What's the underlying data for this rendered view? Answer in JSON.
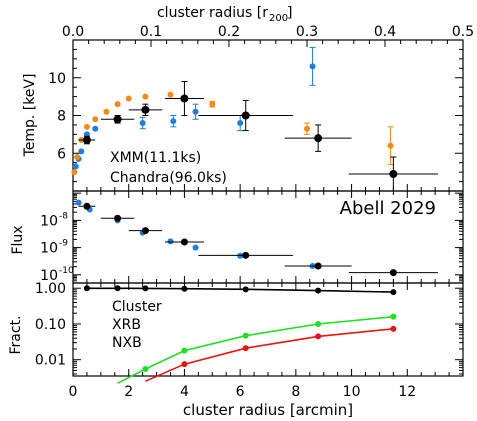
{
  "figure": {
    "top_axis_label": "cluster radius [r",
    "top_axis_label_sub": "200",
    "top_axis_label_end": "]",
    "bottom_axis_label": "cluster radius [arcmin]",
    "annotation": "Abell 2029"
  },
  "colors": {
    "xmm": "#1a7fe6",
    "chandra": "#f08c10",
    "combined": "#000000",
    "cluster_fraction": "#000000",
    "xrb": "#1ee01e",
    "nxb": "#ee1111"
  },
  "chart_data": [
    {
      "type": "scatter",
      "panel": "temperature",
      "ylabel": "Temp. [keV]",
      "xlim": [
        0,
        14
      ],
      "ylim": [
        4,
        12
      ],
      "yticks": [
        6,
        8,
        10
      ],
      "top_xlim": [
        0,
        0.5
      ],
      "top_xticks": [
        "0.0",
        "0.1",
        "0.2",
        "0.3",
        "0.4",
        "0.5"
      ],
      "xticks_bottom": [
        "0",
        "2",
        "4",
        "6",
        "8",
        "10",
        "12"
      ],
      "legend": [
        {
          "text": "XMM(11.1ks)",
          "series": "xmm"
        },
        {
          "text": "Chandra(96.0ks)",
          "series": "chandra"
        }
      ],
      "series": [
        {
          "name": "XMM(11.1ks)",
          "key": "xmm",
          "points": [
            {
              "x": 0.1,
              "y": 5.3
            },
            {
              "x": 0.2,
              "y": 5.7
            },
            {
              "x": 0.3,
              "y": 6.1
            },
            {
              "x": 0.5,
              "y": 7.0
            },
            {
              "x": 0.8,
              "y": 7.3
            },
            {
              "x": 1.6,
              "y": 7.8,
              "yerr": 0.2
            },
            {
              "x": 2.5,
              "y": 7.6,
              "yerr": 0.3
            },
            {
              "x": 3.6,
              "y": 7.7,
              "yerr": 0.3
            },
            {
              "x": 4.4,
              "y": 8.2,
              "yerr": 0.4
            },
            {
              "x": 6.0,
              "y": 7.6,
              "yerr": 0.4
            },
            {
              "x": 8.6,
              "y": 10.6,
              "yerr": 1.0
            }
          ]
        },
        {
          "name": "Chandra(96.0ks)",
          "key": "chandra",
          "points": [
            {
              "x": 0.05,
              "y": 5.0
            },
            {
              "x": 0.15,
              "y": 5.8
            },
            {
              "x": 0.3,
              "y": 6.7
            },
            {
              "x": 0.5,
              "y": 7.4
            },
            {
              "x": 0.8,
              "y": 7.8
            },
            {
              "x": 1.2,
              "y": 8.2
            },
            {
              "x": 1.6,
              "y": 8.6
            },
            {
              "x": 2.0,
              "y": 8.9
            },
            {
              "x": 2.6,
              "y": 9.0
            },
            {
              "x": 3.5,
              "y": 9.1
            },
            {
              "x": 5.0,
              "y": 8.6,
              "yerr": 0.15
            },
            {
              "x": 8.4,
              "y": 7.3,
              "yerr": 0.3
            },
            {
              "x": 11.4,
              "y": 6.4,
              "yerr": 1.0
            }
          ]
        },
        {
          "name": "",
          "key": "combined",
          "points": [
            {
              "x": 0.5,
              "y": 6.7,
              "xerr": 0.3,
              "yerr": 0.2
            },
            {
              "x": 1.6,
              "y": 7.8,
              "xerr": 0.6,
              "yerr": 0.2
            },
            {
              "x": 2.6,
              "y": 8.3,
              "xerr": 0.6,
              "yerr": 0.3
            },
            {
              "x": 4.0,
              "y": 8.9,
              "xerr": 0.7,
              "yerr": 0.9
            },
            {
              "x": 6.2,
              "y": 8.0,
              "xerr": 1.7,
              "yerr": 0.8
            },
            {
              "x": 8.8,
              "y": 6.8,
              "xerr": 1.2,
              "yerr": 0.7
            },
            {
              "x": 11.5,
              "y": 4.9,
              "xerr": 1.6,
              "yerr": 0.9
            }
          ]
        }
      ]
    },
    {
      "type": "scatter",
      "panel": "flux",
      "ylabel": "Flux",
      "yscale": "log",
      "xlim": [
        0,
        14
      ],
      "ylim": [
        5e-11,
        1.2e-07
      ],
      "ytick_labels": [
        "10",
        "10",
        "10"
      ],
      "ytick_exponents": [
        "-8",
        "-9",
        "-10"
      ],
      "ytick_values": [
        1e-08,
        1e-09,
        1e-10
      ],
      "series": [
        {
          "name": "",
          "key": "xmm",
          "points": [
            {
              "x": 0.2,
              "y": 4.5e-08
            },
            {
              "x": 0.6,
              "y": 2.5e-08
            },
            {
              "x": 1.6,
              "y": 1e-08
            },
            {
              "x": 2.5,
              "y": 3.5e-09
            },
            {
              "x": 3.5,
              "y": 1.7e-09
            },
            {
              "x": 4.4,
              "y": 1e-09
            },
            {
              "x": 6.0,
              "y": 5e-10
            },
            {
              "x": 8.6,
              "y": 2.1e-10
            }
          ]
        },
        {
          "name": "",
          "key": "combined",
          "points": [
            {
              "x": 0.5,
              "y": 3.3e-08,
              "xerr": 0.3
            },
            {
              "x": 1.6,
              "y": 1.2e-08,
              "xerr": 0.6
            },
            {
              "x": 2.6,
              "y": 4.2e-09,
              "xerr": 0.6
            },
            {
              "x": 4.0,
              "y": 1.6e-09,
              "xerr": 0.7
            },
            {
              "x": 6.2,
              "y": 5.2e-10,
              "xerr": 1.7
            },
            {
              "x": 8.8,
              "y": 2.1e-10,
              "xerr": 1.2
            },
            {
              "x": 11.5,
              "y": 1.2e-10,
              "xerr": 1.6
            }
          ]
        }
      ]
    },
    {
      "type": "line",
      "panel": "fraction",
      "ylabel": "Fract.",
      "yscale": "log",
      "xlim": [
        0,
        14
      ],
      "ylim": [
        0.0035,
        1.4
      ],
      "ytick_labels": [
        "1.00",
        "0.10",
        "0.01"
      ],
      "ytick_values": [
        1.0,
        0.1,
        0.01
      ],
      "legend": [
        {
          "text": "Cluster",
          "series": "cluster_fraction"
        },
        {
          "text": "XRB",
          "series": "xrb"
        },
        {
          "text": "NXB",
          "series": "nxb"
        }
      ],
      "series": [
        {
          "name": "Cluster",
          "key": "cluster_fraction",
          "x": [
            0.5,
            1.6,
            2.6,
            4.0,
            6.2,
            8.8,
            11.5
          ],
          "values": [
            0.998,
            0.995,
            0.99,
            0.97,
            0.93,
            0.86,
            0.78
          ]
        },
        {
          "name": "XRB",
          "key": "xrb",
          "x": [
            1.6,
            2.6,
            4.0,
            6.2,
            8.8,
            11.5
          ],
          "values": [
            0.0022,
            0.0055,
            0.018,
            0.047,
            0.1,
            0.16
          ]
        },
        {
          "name": "NXB",
          "key": "nxb",
          "x": [
            2.6,
            4.0,
            6.2,
            8.8,
            11.5
          ],
          "values": [
            0.0025,
            0.0075,
            0.021,
            0.045,
            0.073
          ]
        }
      ]
    }
  ]
}
